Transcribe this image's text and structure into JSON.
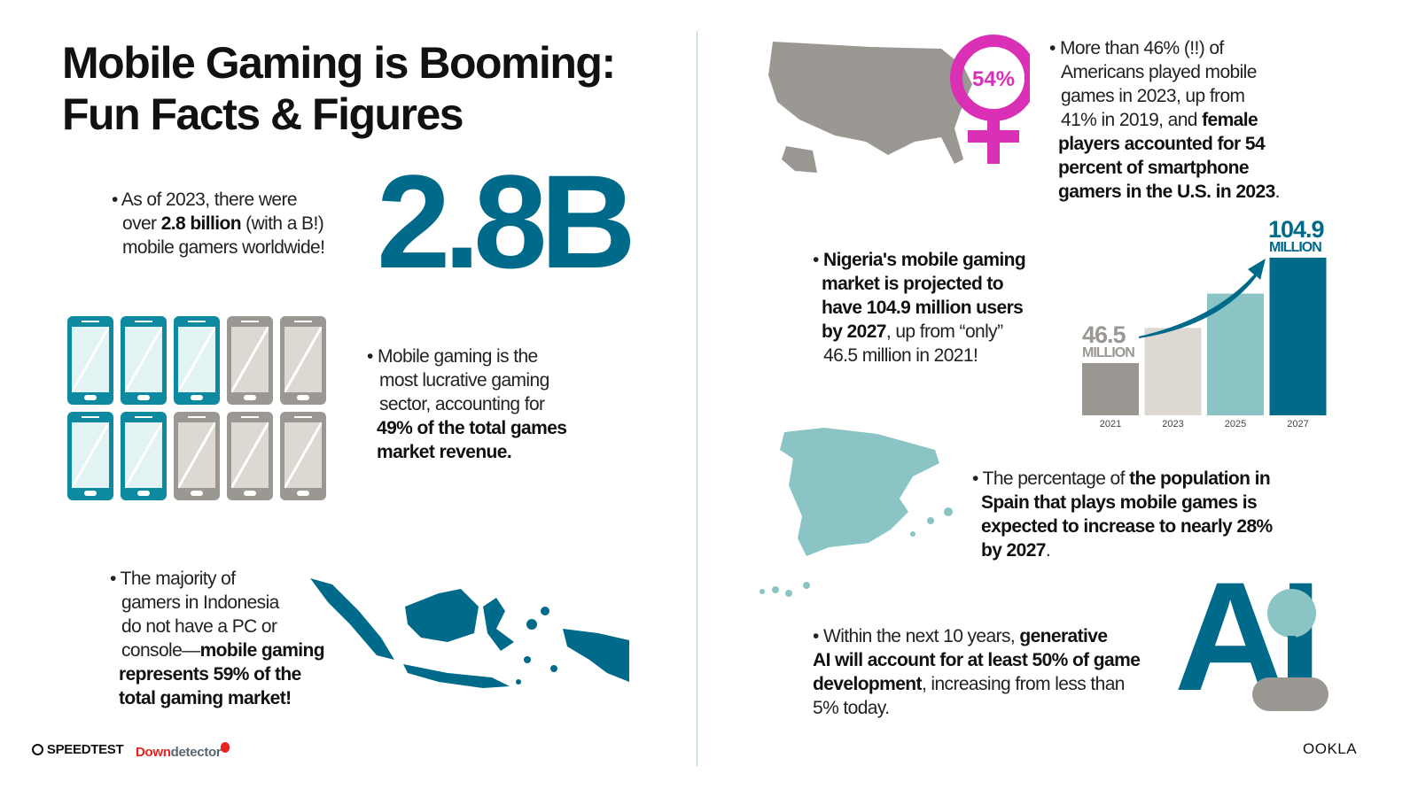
{
  "title": {
    "line1": "Mobile Gaming is Booming:",
    "line2": "Fun Facts & Figures"
  },
  "fact_gamers": {
    "bullet": "•",
    "p1": "As of 2023, there were",
    "p2a": "over ",
    "p2b": "2.8 billion",
    "p2c": " (with a B!)",
    "p3": "mobile gamers worldwide!",
    "big_number": "2.8B"
  },
  "fact_revenue": {
    "l1": "Mobile gaming is the",
    "l2": "most lucrative gaming",
    "l3": "sector, accounting for",
    "l4": "49% of the total games",
    "l5": "market revenue.",
    "share_percent": 49
  },
  "fact_indonesia": {
    "l1": "The majority of",
    "l2": "gamers in Indonesia",
    "l3": "do not have a PC or",
    "l4a": "console—",
    "l4b": "mobile gaming",
    "l5": "represents 59% of the",
    "l6": "total gaming market!"
  },
  "fact_us": {
    "badge": "54%",
    "l1": "More than 46% (!!) of",
    "l2": "Americans played mobile",
    "l3": "games in 2023, up from",
    "l4a": "41% in 2019, and ",
    "l4b": "female",
    "l5": "players accounted for 54",
    "l6": "percent of smartphone",
    "l7": "gamers in the U.S. in 2023",
    "l7end": "."
  },
  "fact_nigeria": {
    "l1": "Nigeria's mobile gaming",
    "l2": "market is projected to",
    "l3": "have 104.9 million users",
    "l4a": "by 2027",
    "l4b": ", up from “only”",
    "l5": "46.5 million in 2021!"
  },
  "chart_data": {
    "type": "bar",
    "categories": [
      "2021",
      "2023",
      "2025",
      "2027"
    ],
    "values": [
      46.5,
      66,
      85,
      104.9
    ],
    "unit": "MILLION",
    "data_labels": {
      "first": "46.5",
      "last": "104.9",
      "unit": "MILLION"
    },
    "colors": [
      "#9b9893",
      "#ddd8d1",
      "#8bc4c5",
      "#006a8a"
    ]
  },
  "fact_spain": {
    "l1a": "The percentage of ",
    "l1b": "the population in",
    "l2": "Spain that plays mobile games is",
    "l3": "expected to increase to nearly 28%",
    "l4": "by 2027",
    "l4end": "."
  },
  "fact_ai": {
    "l1a": "Within the next 10 years, ",
    "l1b": "generative",
    "l2": "AI will account for at least 50% of game",
    "l3a": "development",
    "l3b": ", increasing from less than",
    "l4": "5% today.",
    "logo": "AI"
  },
  "footer": {
    "speedtest": "SPEEDTEST",
    "down": "Down",
    "detector": "detector",
    "ookla": "OOKLA"
  },
  "colors": {
    "teal_dark": "#006a8a",
    "teal_light": "#8bc4c5",
    "grey": "#9b9893",
    "magenta": "#d930b5",
    "red": "#e8231f"
  }
}
